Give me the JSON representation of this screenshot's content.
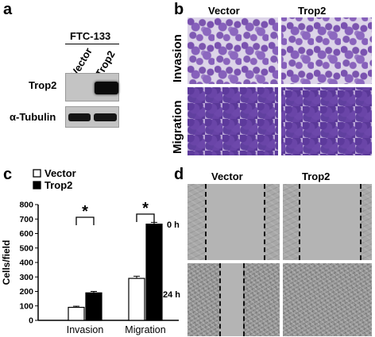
{
  "panel_a": {
    "letter": "a",
    "cell_line": "FTC-133",
    "lanes": [
      "Vector",
      "Trop2"
    ],
    "rows": [
      "Trop2",
      "α-Tubulin"
    ]
  },
  "panel_b": {
    "letter": "b",
    "columns": [
      "Vector",
      "Trop2"
    ],
    "rows": [
      "Invasion",
      "Migration"
    ]
  },
  "panel_c": {
    "letter": "c",
    "significance": "*"
  },
  "panel_d": {
    "letter": "d",
    "columns": [
      "Vector",
      "Trop2"
    ],
    "rows": [
      "0 h",
      "24 h"
    ]
  },
  "chart_data": {
    "type": "bar",
    "categories": [
      "Invasion",
      "Migration"
    ],
    "series": [
      {
        "name": "Vector",
        "values": [
          90,
          290
        ],
        "errors": [
          8,
          15
        ],
        "color": "#ffffff"
      },
      {
        "name": "Trop2",
        "values": [
          190,
          665
        ],
        "errors": [
          10,
          12
        ],
        "color": "#000000"
      }
    ],
    "ylabel": "Cells/field",
    "yticks": [
      0,
      100,
      200,
      300,
      400,
      500,
      600,
      700,
      800
    ],
    "ylim": [
      0,
      800
    ],
    "legend_position": "top-left",
    "annotations": [
      "*",
      "*"
    ]
  }
}
